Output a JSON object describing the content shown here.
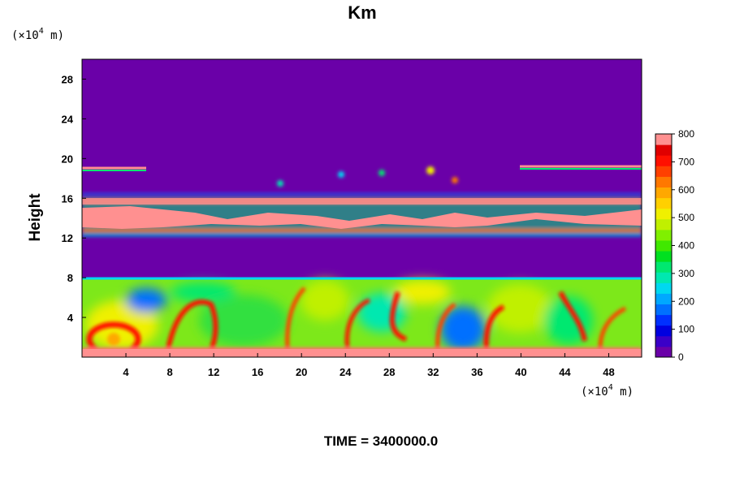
{
  "chart_data": {
    "type": "heatmap",
    "title": "Km",
    "ylabel": "Height",
    "xlabel": "",
    "x_unit": {
      "prefix": "(×10",
      "exponent": "4",
      "suffix": " m)"
    },
    "y_unit": {
      "prefix": "(×10",
      "exponent": "4",
      "suffix": " m)"
    },
    "xlim": [
      0,
      51
    ],
    "ylim": [
      0,
      30
    ],
    "x_ticks": [
      4,
      8,
      12,
      16,
      20,
      24,
      28,
      32,
      36,
      40,
      44,
      48
    ],
    "y_ticks": [
      4,
      8,
      12,
      16,
      20,
      24,
      28
    ],
    "colorbar": {
      "min": 0,
      "max": 800,
      "ticks": [
        0,
        100,
        200,
        300,
        400,
        500,
        600,
        700,
        800
      ],
      "levels": [
        "#6a00a8",
        "#3a00c8",
        "#0000e0",
        "#0030ff",
        "#0070ff",
        "#00a8ff",
        "#00d8f0",
        "#00e8b0",
        "#00e870",
        "#00e020",
        "#40e800",
        "#80f000",
        "#c0f000",
        "#f0f000",
        "#ffd000",
        "#ffa800",
        "#ff7800",
        "#ff4000",
        "#ff1000",
        "#e00000",
        "#ff9090"
      ]
    },
    "background_value": 0,
    "footer": "TIME = 3400000.0"
  }
}
